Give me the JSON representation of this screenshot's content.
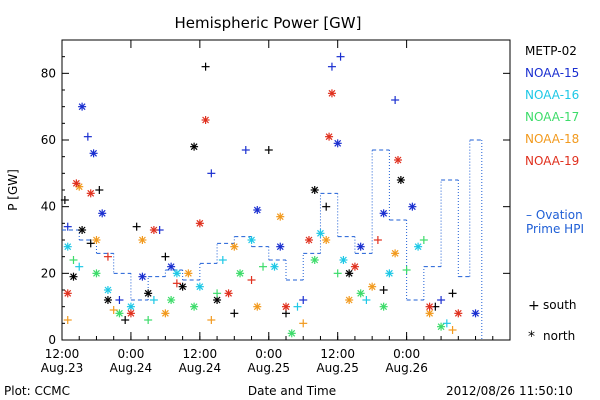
{
  "footer": {
    "plot_credit": "Plot: CCMC",
    "timestamp": "2012/08/26 11:50:10"
  },
  "chart_data": {
    "type": "scatter",
    "title": "Hemispheric Power [GW]",
    "xlabel": "Date and Time",
    "ylabel": "P [GW]",
    "xlim": [
      "2012-08-23 12:00",
      "2012-08-26 18:00"
    ],
    "ylim": [
      0,
      90
    ],
    "y_ticks": [
      0,
      20,
      40,
      60,
      80
    ],
    "x_ticks": [
      {
        "t": "2012-08-23 12:00",
        "time": "12:00",
        "date": "Aug.23"
      },
      {
        "t": "2012-08-24 00:00",
        "time": "0:00",
        "date": "Aug.24"
      },
      {
        "t": "2012-08-24 12:00",
        "time": "12:00",
        "date": "Aug.24"
      },
      {
        "t": "2012-08-25 00:00",
        "time": "0:00",
        "date": "Aug.25"
      },
      {
        "t": "2012-08-25 12:00",
        "time": "12:00",
        "date": "Aug.25"
      },
      {
        "t": "2012-08-26 00:00",
        "time": "0:00",
        "date": "Aug.26"
      }
    ],
    "grid": false,
    "legend_position": "right",
    "legend": [
      {
        "name": "METP-02",
        "color": "#000000"
      },
      {
        "name": "NOAA-15",
        "color": "#1a2fd0"
      },
      {
        "name": "NOAA-16",
        "color": "#1ec8e6"
      },
      {
        "name": "NOAA-17",
        "color": "#3ddc6a"
      },
      {
        "name": "NOAA-18",
        "color": "#f29a1e"
      },
      {
        "name": "NOAA-19",
        "color": "#e0301e"
      }
    ],
    "ovation_legend": [
      "– Ovation",
      "Prime HPI"
    ],
    "ovation_color": "#1f5fd6",
    "marker_legend": [
      {
        "symbol": "+",
        "label": "south"
      },
      {
        "symbol": "*",
        "label": "north"
      }
    ],
    "ovation_hpi": [
      {
        "t": "2012-08-23 12:00",
        "y": 33
      },
      {
        "t": "2012-08-23 15:00",
        "y": 30
      },
      {
        "t": "2012-08-23 18:00",
        "y": 26
      },
      {
        "t": "2012-08-23 21:00",
        "y": 20
      },
      {
        "t": "2012-08-24 00:00",
        "y": 12
      },
      {
        "t": "2012-08-24 03:00",
        "y": 19
      },
      {
        "t": "2012-08-24 06:00",
        "y": 21
      },
      {
        "t": "2012-08-24 09:00",
        "y": 18
      },
      {
        "t": "2012-08-24 12:00",
        "y": 23
      },
      {
        "t": "2012-08-24 15:00",
        "y": 29
      },
      {
        "t": "2012-08-24 18:00",
        "y": 31
      },
      {
        "t": "2012-08-24 21:00",
        "y": 28
      },
      {
        "t": "2012-08-25 00:00",
        "y": 24
      },
      {
        "t": "2012-08-25 03:00",
        "y": 18
      },
      {
        "t": "2012-08-25 06:00",
        "y": 26
      },
      {
        "t": "2012-08-25 09:00",
        "y": 44
      },
      {
        "t": "2012-08-25 12:00",
        "y": 31
      },
      {
        "t": "2012-08-25 15:00",
        "y": 26
      },
      {
        "t": "2012-08-25 18:00",
        "y": 57
      },
      {
        "t": "2012-08-25 21:00",
        "y": 36
      },
      {
        "t": "2012-08-26 00:00",
        "y": 12
      },
      {
        "t": "2012-08-26 03:00",
        "y": 22
      },
      {
        "t": "2012-08-26 06:00",
        "y": 48
      },
      {
        "t": "2012-08-26 09:00",
        "y": 19
      },
      {
        "t": "2012-08-26 11:00",
        "y": 60
      }
    ],
    "series": [
      {
        "name": "METP-02",
        "points": [
          {
            "t": "2012-08-23 12:30",
            "y": 42,
            "m": "+"
          },
          {
            "t": "2012-08-23 14:00",
            "y": 19,
            "m": "*"
          },
          {
            "t": "2012-08-23 15:30",
            "y": 33,
            "m": "*"
          },
          {
            "t": "2012-08-23 17:00",
            "y": 29,
            "m": "+"
          },
          {
            "t": "2012-08-23 18:30",
            "y": 45,
            "m": "+"
          },
          {
            "t": "2012-08-23 20:00",
            "y": 12,
            "m": "*"
          },
          {
            "t": "2012-08-23 23:00",
            "y": 6,
            "m": "+"
          },
          {
            "t": "2012-08-24 01:00",
            "y": 34,
            "m": "+"
          },
          {
            "t": "2012-08-24 03:00",
            "y": 14,
            "m": "*"
          },
          {
            "t": "2012-08-24 06:00",
            "y": 25,
            "m": "+"
          },
          {
            "t": "2012-08-24 09:00",
            "y": 16,
            "m": "*"
          },
          {
            "t": "2012-08-24 11:00",
            "y": 58,
            "m": "*"
          },
          {
            "t": "2012-08-24 13:00",
            "y": 82,
            "m": "+"
          },
          {
            "t": "2012-08-24 15:00",
            "y": 12,
            "m": "*"
          },
          {
            "t": "2012-08-24 18:00",
            "y": 8,
            "m": "+"
          },
          {
            "t": "2012-08-25 00:00",
            "y": 57,
            "m": "+"
          },
          {
            "t": "2012-08-25 03:00",
            "y": 8,
            "m": "+"
          },
          {
            "t": "2012-08-25 08:00",
            "y": 45,
            "m": "*"
          },
          {
            "t": "2012-08-25 10:00",
            "y": 40,
            "m": "+"
          },
          {
            "t": "2012-08-25 14:00",
            "y": 20,
            "m": "*"
          },
          {
            "t": "2012-08-25 20:00",
            "y": 15,
            "m": "+"
          },
          {
            "t": "2012-08-25 23:00",
            "y": 48,
            "m": "*"
          },
          {
            "t": "2012-08-26 05:00",
            "y": 10,
            "m": "+"
          },
          {
            "t": "2012-08-26 08:00",
            "y": 14,
            "m": "+"
          }
        ]
      },
      {
        "name": "NOAA-15",
        "points": [
          {
            "t": "2012-08-23 13:00",
            "y": 34,
            "m": "+"
          },
          {
            "t": "2012-08-23 15:30",
            "y": 70,
            "m": "*"
          },
          {
            "t": "2012-08-23 16:30",
            "y": 61,
            "m": "+"
          },
          {
            "t": "2012-08-23 17:30",
            "y": 56,
            "m": "*"
          },
          {
            "t": "2012-08-23 19:00",
            "y": 38,
            "m": "*"
          },
          {
            "t": "2012-08-23 22:00",
            "y": 12,
            "m": "+"
          },
          {
            "t": "2012-08-24 02:00",
            "y": 19,
            "m": "*"
          },
          {
            "t": "2012-08-24 05:00",
            "y": 33,
            "m": "+"
          },
          {
            "t": "2012-08-24 07:00",
            "y": 22,
            "m": "*"
          },
          {
            "t": "2012-08-24 14:00",
            "y": 50,
            "m": "+"
          },
          {
            "t": "2012-08-24 20:00",
            "y": 57,
            "m": "+"
          },
          {
            "t": "2012-08-24 22:00",
            "y": 39,
            "m": "*"
          },
          {
            "t": "2012-08-25 02:00",
            "y": 28,
            "m": "*"
          },
          {
            "t": "2012-08-25 06:00",
            "y": 12,
            "m": "+"
          },
          {
            "t": "2012-08-25 11:00",
            "y": 82,
            "m": "+"
          },
          {
            "t": "2012-08-25 12:30",
            "y": 85,
            "m": "+"
          },
          {
            "t": "2012-08-25 12:00",
            "y": 59,
            "m": "*"
          },
          {
            "t": "2012-08-25 16:00",
            "y": 28,
            "m": "*"
          },
          {
            "t": "2012-08-25 20:00",
            "y": 38,
            "m": "*"
          },
          {
            "t": "2012-08-25 22:00",
            "y": 72,
            "m": "+"
          },
          {
            "t": "2012-08-26 01:00",
            "y": 40,
            "m": "*"
          },
          {
            "t": "2012-08-26 06:00",
            "y": 12,
            "m": "+"
          },
          {
            "t": "2012-08-26 12:00",
            "y": 8,
            "m": "*"
          }
        ]
      },
      {
        "name": "NOAA-16",
        "points": [
          {
            "t": "2012-08-23 13:00",
            "y": 28,
            "m": "*"
          },
          {
            "t": "2012-08-23 15:00",
            "y": 22,
            "m": "+"
          },
          {
            "t": "2012-08-23 20:00",
            "y": 15,
            "m": "*"
          },
          {
            "t": "2012-08-24 00:00",
            "y": 10,
            "m": "*"
          },
          {
            "t": "2012-08-24 04:00",
            "y": 12,
            "m": "+"
          },
          {
            "t": "2012-08-24 08:00",
            "y": 20,
            "m": "*"
          },
          {
            "t": "2012-08-24 12:00",
            "y": 16,
            "m": "*"
          },
          {
            "t": "2012-08-24 16:00",
            "y": 24,
            "m": "+"
          },
          {
            "t": "2012-08-24 21:00",
            "y": 30,
            "m": "*"
          },
          {
            "t": "2012-08-25 01:00",
            "y": 22,
            "m": "*"
          },
          {
            "t": "2012-08-25 05:00",
            "y": 10,
            "m": "+"
          },
          {
            "t": "2012-08-25 09:00",
            "y": 32,
            "m": "*"
          },
          {
            "t": "2012-08-25 13:00",
            "y": 24,
            "m": "*"
          },
          {
            "t": "2012-08-25 17:00",
            "y": 12,
            "m": "+"
          },
          {
            "t": "2012-08-25 21:00",
            "y": 20,
            "m": "*"
          },
          {
            "t": "2012-08-26 02:00",
            "y": 28,
            "m": "*"
          },
          {
            "t": "2012-08-26 07:00",
            "y": 5,
            "m": "+"
          }
        ]
      },
      {
        "name": "NOAA-17",
        "points": [
          {
            "t": "2012-08-23 14:00",
            "y": 24,
            "m": "+"
          },
          {
            "t": "2012-08-23 18:00",
            "y": 20,
            "m": "*"
          },
          {
            "t": "2012-08-23 22:00",
            "y": 8,
            "m": "*"
          },
          {
            "t": "2012-08-24 03:00",
            "y": 6,
            "m": "+"
          },
          {
            "t": "2012-08-24 07:00",
            "y": 12,
            "m": "*"
          },
          {
            "t": "2012-08-24 11:00",
            "y": 10,
            "m": "*"
          },
          {
            "t": "2012-08-24 15:00",
            "y": 14,
            "m": "+"
          },
          {
            "t": "2012-08-24 19:00",
            "y": 20,
            "m": "*"
          },
          {
            "t": "2012-08-24 23:00",
            "y": 22,
            "m": "+"
          },
          {
            "t": "2012-08-25 04:00",
            "y": 2,
            "m": "*"
          },
          {
            "t": "2012-08-25 08:00",
            "y": 24,
            "m": "*"
          },
          {
            "t": "2012-08-25 12:00",
            "y": 20,
            "m": "+"
          },
          {
            "t": "2012-08-25 16:00",
            "y": 14,
            "m": "*"
          },
          {
            "t": "2012-08-25 20:00",
            "y": 10,
            "m": "*"
          },
          {
            "t": "2012-08-26 00:00",
            "y": 21,
            "m": "+"
          },
          {
            "t": "2012-08-26 03:00",
            "y": 30,
            "m": "+"
          },
          {
            "t": "2012-08-26 06:00",
            "y": 4,
            "m": "*"
          }
        ]
      },
      {
        "name": "NOAA-18",
        "points": [
          {
            "t": "2012-08-23 13:00",
            "y": 6,
            "m": "+"
          },
          {
            "t": "2012-08-23 15:00",
            "y": 46,
            "m": "*"
          },
          {
            "t": "2012-08-23 18:00",
            "y": 30,
            "m": "*"
          },
          {
            "t": "2012-08-23 21:00",
            "y": 9,
            "m": "+"
          },
          {
            "t": "2012-08-24 02:00",
            "y": 30,
            "m": "*"
          },
          {
            "t": "2012-08-24 06:00",
            "y": 8,
            "m": "*"
          },
          {
            "t": "2012-08-24 10:00",
            "y": 20,
            "m": "*"
          },
          {
            "t": "2012-08-24 14:00",
            "y": 6,
            "m": "+"
          },
          {
            "t": "2012-08-24 18:00",
            "y": 28,
            "m": "*"
          },
          {
            "t": "2012-08-24 22:00",
            "y": 10,
            "m": "*"
          },
          {
            "t": "2012-08-25 02:00",
            "y": 37,
            "m": "*"
          },
          {
            "t": "2012-08-25 06:00",
            "y": 5,
            "m": "+"
          },
          {
            "t": "2012-08-25 10:00",
            "y": 30,
            "m": "*"
          },
          {
            "t": "2012-08-25 14:00",
            "y": 12,
            "m": "*"
          },
          {
            "t": "2012-08-25 18:00",
            "y": 16,
            "m": "*"
          },
          {
            "t": "2012-08-25 22:00",
            "y": 26,
            "m": "*"
          },
          {
            "t": "2012-08-26 04:00",
            "y": 8,
            "m": "*"
          },
          {
            "t": "2012-08-26 08:00",
            "y": 3,
            "m": "+"
          }
        ]
      },
      {
        "name": "NOAA-19",
        "points": [
          {
            "t": "2012-08-23 13:00",
            "y": 14,
            "m": "*"
          },
          {
            "t": "2012-08-23 14:30",
            "y": 47,
            "m": "*"
          },
          {
            "t": "2012-08-23 17:00",
            "y": 44,
            "m": "*"
          },
          {
            "t": "2012-08-23 20:00",
            "y": 25,
            "m": "+"
          },
          {
            "t": "2012-08-24 00:00",
            "y": 8,
            "m": "*"
          },
          {
            "t": "2012-08-24 04:00",
            "y": 33,
            "m": "*"
          },
          {
            "t": "2012-08-24 08:00",
            "y": 17,
            "m": "+"
          },
          {
            "t": "2012-08-24 13:00",
            "y": 66,
            "m": "*"
          },
          {
            "t": "2012-08-24 12:00",
            "y": 35,
            "m": "*"
          },
          {
            "t": "2012-08-24 17:00",
            "y": 14,
            "m": "*"
          },
          {
            "t": "2012-08-24 21:00",
            "y": 18,
            "m": "+"
          },
          {
            "t": "2012-08-25 03:00",
            "y": 10,
            "m": "*"
          },
          {
            "t": "2012-08-25 07:00",
            "y": 30,
            "m": "*"
          },
          {
            "t": "2012-08-25 11:00",
            "y": 74,
            "m": "*"
          },
          {
            "t": "2012-08-25 10:30",
            "y": 61,
            "m": "*"
          },
          {
            "t": "2012-08-25 15:00",
            "y": 22,
            "m": "*"
          },
          {
            "t": "2012-08-25 19:00",
            "y": 30,
            "m": "+"
          },
          {
            "t": "2012-08-25 22:30",
            "y": 54,
            "m": "*"
          },
          {
            "t": "2012-08-26 04:00",
            "y": 10,
            "m": "*"
          },
          {
            "t": "2012-08-26 09:00",
            "y": 8,
            "m": "*"
          }
        ]
      }
    ]
  }
}
